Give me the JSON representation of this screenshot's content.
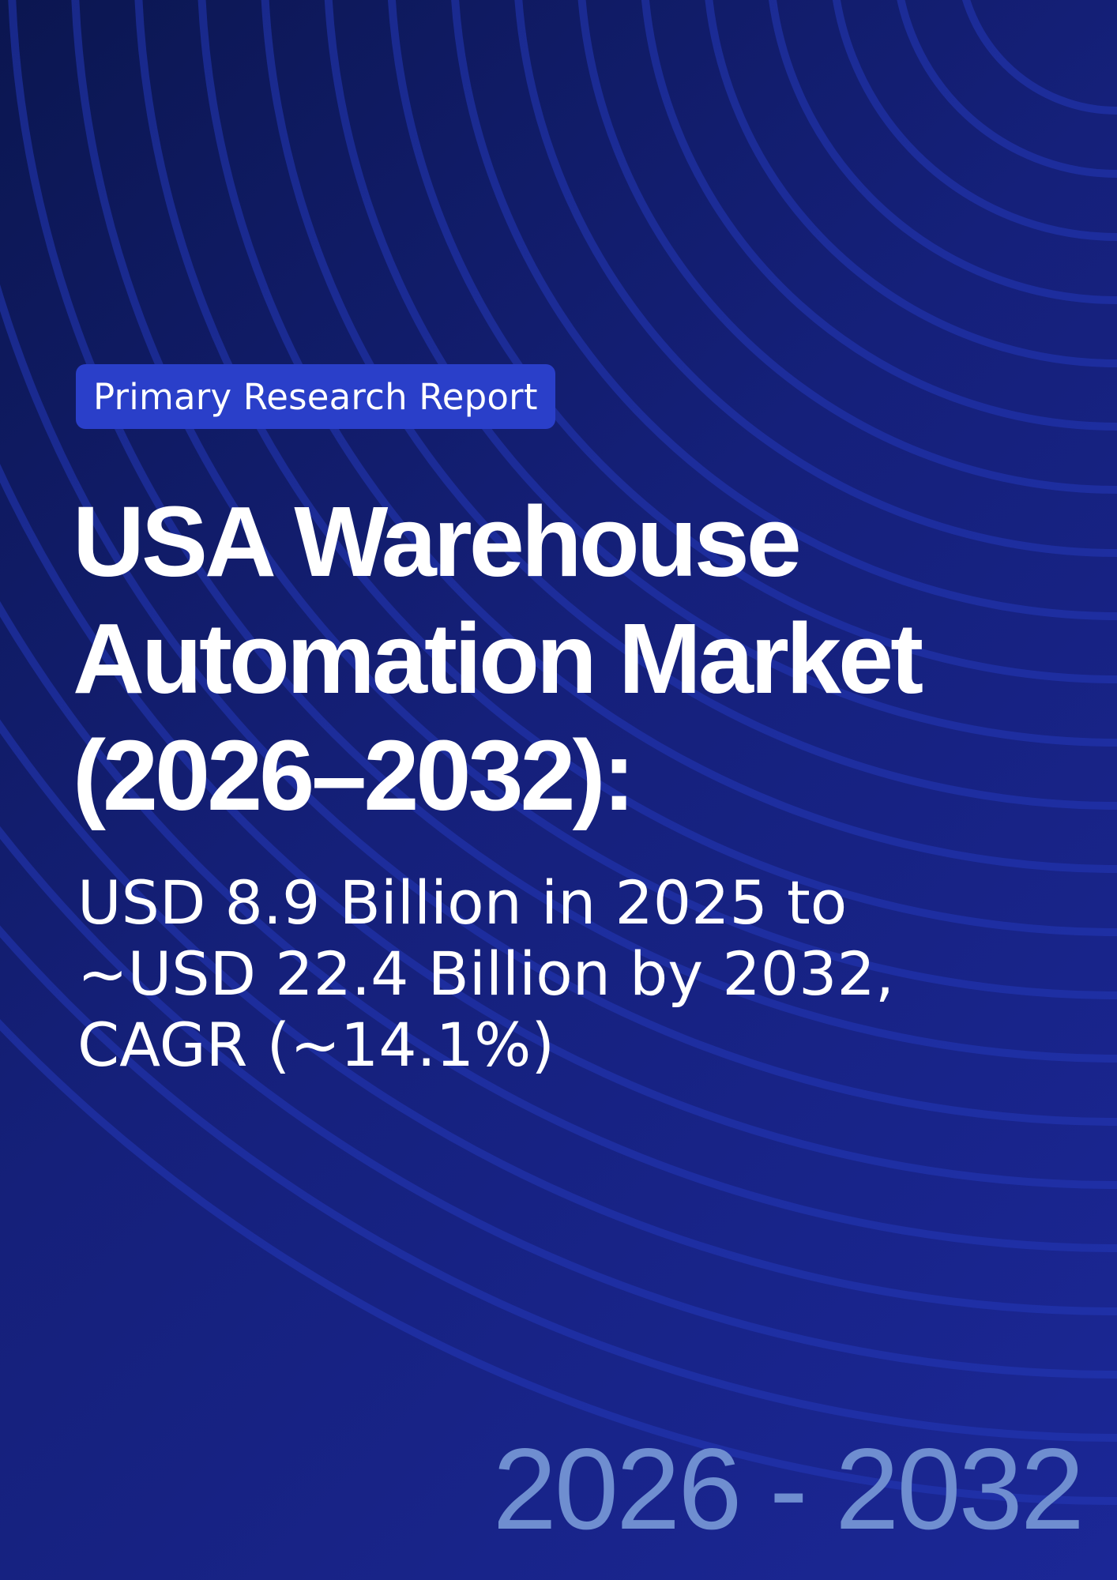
{
  "badge": {
    "label": "Primary Research Report"
  },
  "title": {
    "line1": "USA Warehouse",
    "line2": "Automation Market",
    "line3": "(2026–2032):"
  },
  "subtitle": {
    "line1": "USD 8.9 Billion in 2025 to",
    "line2": "~USD 22.4 Billion by 2032,",
    "line3": "CAGR (~14.1%)"
  },
  "period": {
    "label": "2026 - 2032"
  },
  "colors": {
    "background_dark": "#0b1650",
    "background_light": "#1b2796",
    "badge": "#2a3fc9",
    "arcs": "#2438b8",
    "period_text": "#6f8ed0",
    "text": "#ffffff"
  }
}
